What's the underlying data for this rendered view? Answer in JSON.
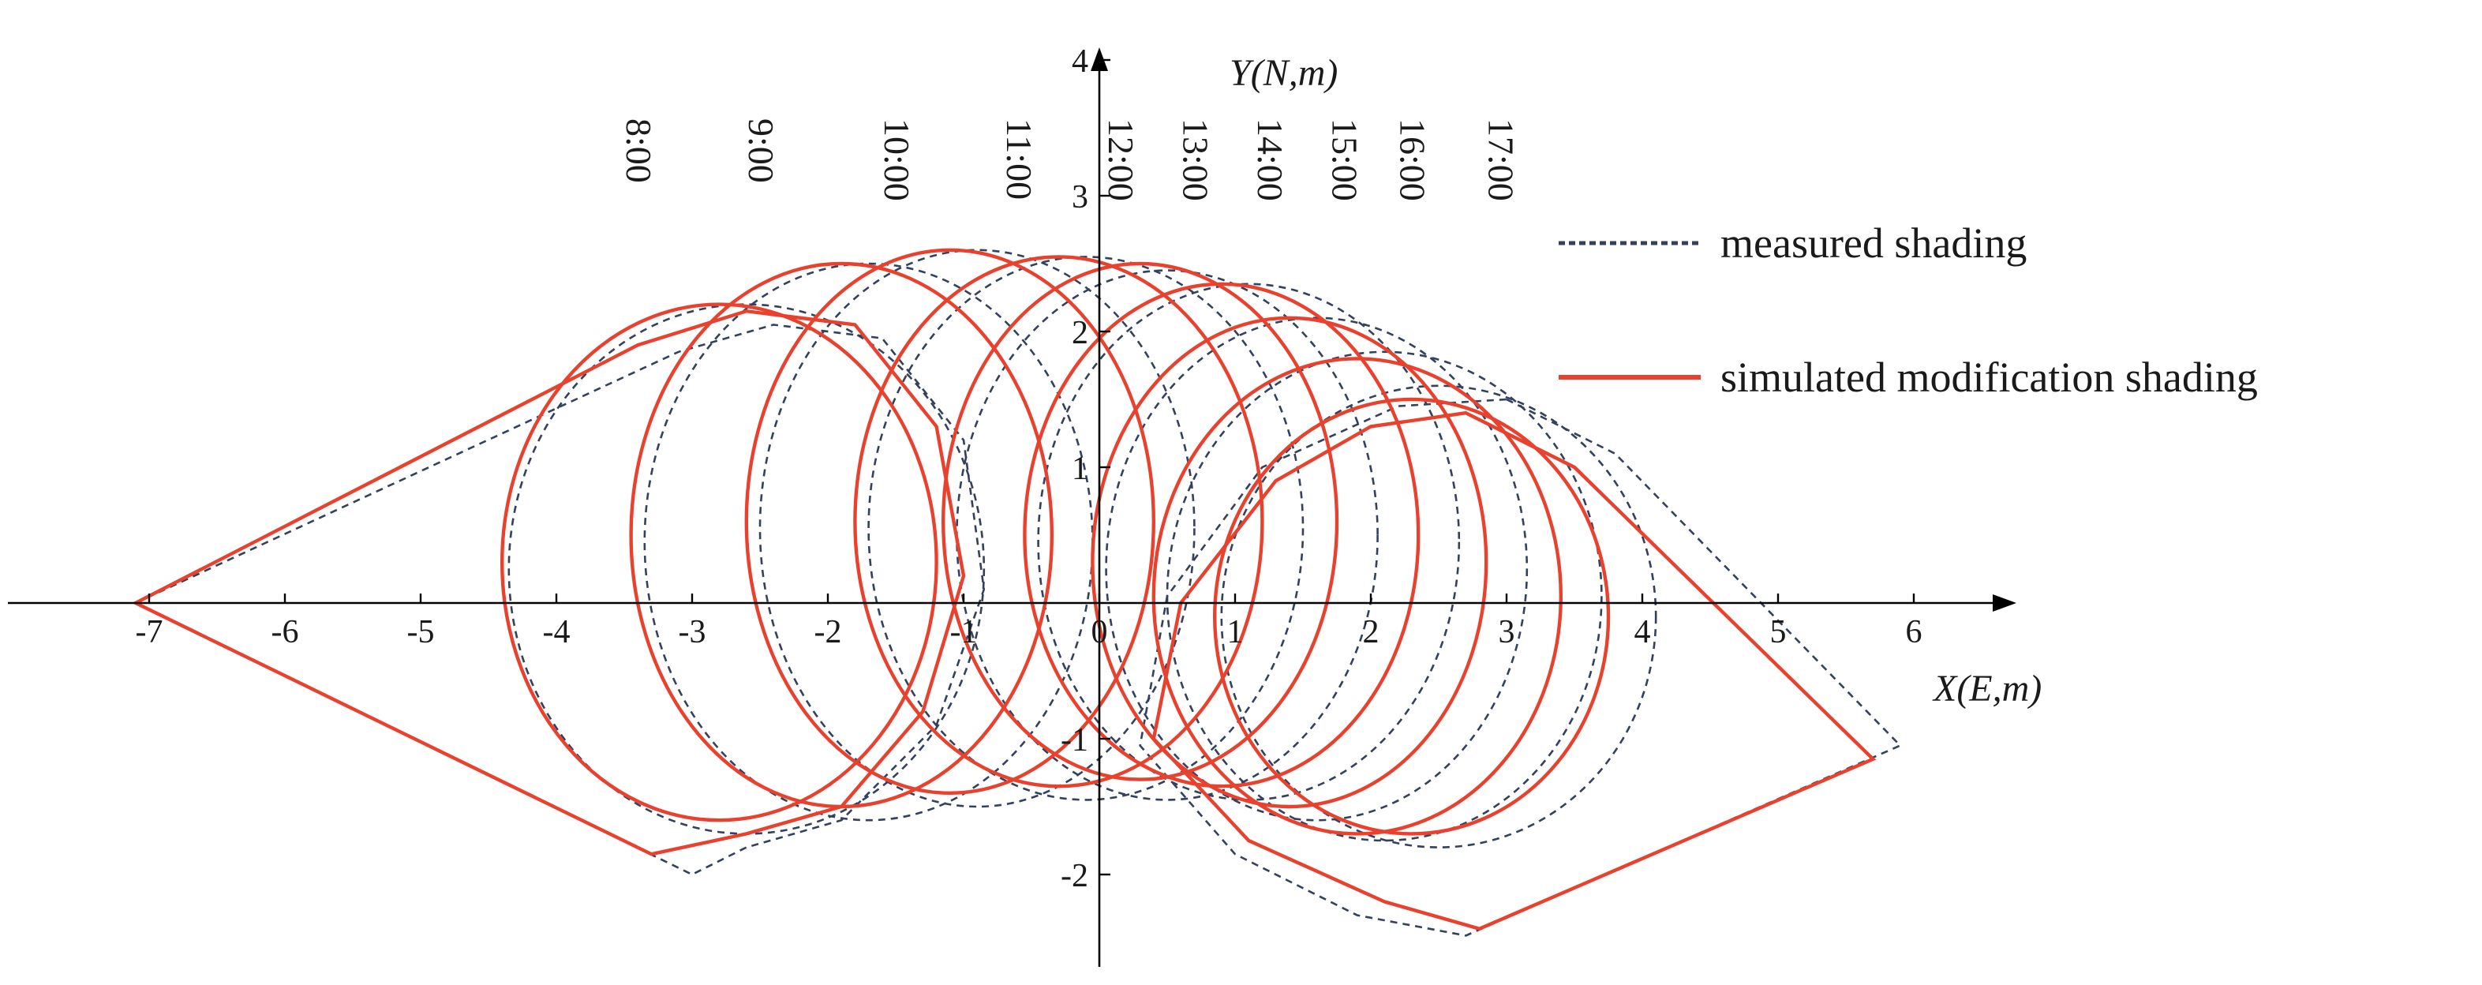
{
  "chart_data": {
    "type": "line",
    "title": "",
    "xlabel": "X(E,m)",
    "ylabel": "Y(N,m)",
    "xlim": [
      -8,
      6.7
    ],
    "ylim": [
      -2.6,
      4.1
    ],
    "x_ticks": [
      -7,
      -6,
      -5,
      -4,
      -3,
      -2,
      -1,
      0,
      1,
      2,
      3,
      4,
      5,
      6
    ],
    "y_ticks": [
      -2,
      -1,
      1,
      2,
      3,
      4
    ],
    "time_labels": [
      {
        "label": "8:00",
        "x": -3.4
      },
      {
        "label": "9:00",
        "x": -2.5
      },
      {
        "label": "10:00",
        "x": -1.5
      },
      {
        "label": "11:00",
        "x": -0.6
      },
      {
        "label": "12:00",
        "x": 0.15
      },
      {
        "label": "13:00",
        "x": 0.7
      },
      {
        "label": "14:00",
        "x": 1.25
      },
      {
        "label": "15:00",
        "x": 1.8
      },
      {
        "label": "16:00",
        "x": 2.3
      },
      {
        "label": "17:00",
        "x": 2.95
      }
    ],
    "legend": {
      "placement": "right",
      "items": [
        {
          "label": "measured shading",
          "style": "dashed",
          "color": "#33415c"
        },
        {
          "label": "simulated modification shading",
          "style": "solid",
          "color": "#e8422f"
        }
      ]
    },
    "grid": false,
    "series": [
      {
        "label": "simulated modification shading",
        "color": "#e8422f",
        "polygons": [
          [
            [
              -7.1,
              0.0
            ],
            [
              -3.4,
              1.9
            ],
            [
              -2.6,
              2.15
            ],
            [
              -1.8,
              2.05
            ],
            [
              -1.2,
              1.3
            ],
            [
              -1.0,
              0.2
            ],
            [
              -1.3,
              -0.8
            ],
            [
              -1.9,
              -1.5
            ],
            [
              -2.6,
              -1.7
            ],
            [
              -3.3,
              -1.85
            ],
            [
              -7.1,
              0.0
            ]
          ],
          [
            [
              2.7,
              1.4
            ],
            [
              3.5,
              1.0
            ],
            [
              5.7,
              -1.15
            ],
            [
              2.8,
              -2.4
            ],
            [
              2.1,
              -2.2
            ],
            [
              1.1,
              -1.75
            ],
            [
              0.4,
              -1.0
            ],
            [
              0.6,
              0.0
            ],
            [
              1.3,
              0.9
            ],
            [
              2.0,
              1.3
            ],
            [
              2.7,
              1.4
            ]
          ]
        ],
        "ellipses": [
          {
            "cx": -2.8,
            "cy": 0.3,
            "rx": 1.6,
            "ry": 1.9
          },
          {
            "cx": -1.9,
            "cy": 0.5,
            "rx": 1.55,
            "ry": 2.0
          },
          {
            "cx": -1.1,
            "cy": 0.6,
            "rx": 1.5,
            "ry": 2.0
          },
          {
            "cx": -0.3,
            "cy": 0.6,
            "rx": 1.5,
            "ry": 1.95
          },
          {
            "cx": 0.3,
            "cy": 0.6,
            "rx": 1.45,
            "ry": 1.9
          },
          {
            "cx": 0.9,
            "cy": 0.5,
            "rx": 1.45,
            "ry": 1.85
          },
          {
            "cx": 1.4,
            "cy": 0.3,
            "rx": 1.45,
            "ry": 1.8
          },
          {
            "cx": 1.9,
            "cy": 0.05,
            "rx": 1.5,
            "ry": 1.75
          },
          {
            "cx": 2.3,
            "cy": -0.1,
            "rx": 1.45,
            "ry": 1.6
          }
        ]
      },
      {
        "label": "measured shading",
        "color": "#33415c",
        "polygons": [
          [
            [
              -7.1,
              0.0
            ],
            [
              -3.1,
              1.85
            ],
            [
              -2.4,
              2.05
            ],
            [
              -1.6,
              1.95
            ],
            [
              -1.0,
              1.2
            ],
            [
              -0.85,
              0.1
            ],
            [
              -1.2,
              -0.9
            ],
            [
              -1.9,
              -1.6
            ],
            [
              -2.6,
              -1.8
            ],
            [
              -3.0,
              -2.0
            ],
            [
              -7.1,
              0.0
            ]
          ],
          [
            [
              3.0,
              1.5
            ],
            [
              3.8,
              1.1
            ],
            [
              5.9,
              -1.05
            ],
            [
              2.7,
              -2.45
            ],
            [
              1.9,
              -2.3
            ],
            [
              1.0,
              -1.85
            ],
            [
              0.3,
              -1.05
            ],
            [
              0.5,
              0.05
            ],
            [
              1.2,
              1.0
            ],
            [
              2.2,
              1.45
            ],
            [
              3.0,
              1.5
            ]
          ]
        ],
        "ellipses": [
          {
            "cx": -2.6,
            "cy": 0.25,
            "rx": 1.75,
            "ry": 1.95
          },
          {
            "cx": -1.7,
            "cy": 0.45,
            "rx": 1.65,
            "ry": 2.05
          },
          {
            "cx": -0.9,
            "cy": 0.55,
            "rx": 1.6,
            "ry": 2.05
          },
          {
            "cx": -0.1,
            "cy": 0.55,
            "rx": 1.6,
            "ry": 2.0
          },
          {
            "cx": 0.5,
            "cy": 0.5,
            "rx": 1.55,
            "ry": 1.95
          },
          {
            "cx": 1.1,
            "cy": 0.45,
            "rx": 1.55,
            "ry": 1.9
          },
          {
            "cx": 1.6,
            "cy": 0.25,
            "rx": 1.55,
            "ry": 1.85
          },
          {
            "cx": 2.1,
            "cy": 0.05,
            "rx": 1.6,
            "ry": 1.8
          },
          {
            "cx": 2.5,
            "cy": -0.1,
            "rx": 1.6,
            "ry": 1.7
          }
        ]
      }
    ]
  }
}
